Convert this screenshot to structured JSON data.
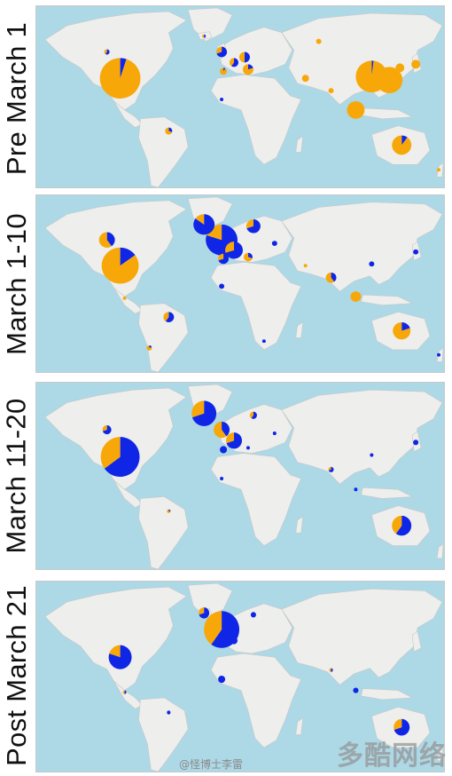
{
  "colors": {
    "ocean": "#add8e6",
    "land": "#eeeeec",
    "border": "#c8c8c8",
    "series_a": "#1026e6",
    "series_b": "#f7a808"
  },
  "panels": [
    {
      "label": "Pre March 1",
      "pies": [
        {
          "place": "usa",
          "v": [
            0.05,
            0.95
          ],
          "r": 23
        },
        {
          "place": "canada",
          "v": [
            0.6,
            0.4
          ],
          "r": 3
        },
        {
          "place": "brazil",
          "v": [
            0.3,
            0.7
          ],
          "r": 4
        },
        {
          "place": "uk",
          "v": [
            0.7,
            0.3
          ],
          "r": 6
        },
        {
          "place": "france",
          "v": [
            0.6,
            0.4
          ],
          "r": 5
        },
        {
          "place": "germany",
          "v": [
            0.5,
            0.5
          ],
          "r": 6
        },
        {
          "place": "italy",
          "v": [
            0.2,
            0.8
          ],
          "r": 6
        },
        {
          "place": "spain",
          "v": [
            0.1,
            0.9
          ],
          "r": 4
        },
        {
          "place": "iceland",
          "v": [
            0.5,
            0.5
          ],
          "r": 2
        },
        {
          "place": "russia",
          "v": [
            0,
            1
          ],
          "r": 3
        },
        {
          "place": "iran",
          "v": [
            0,
            1
          ],
          "r": 4
        },
        {
          "place": "india",
          "v": [
            0,
            1
          ],
          "r": 3
        },
        {
          "place": "china",
          "v": [
            0.02,
            0.98
          ],
          "r": 18
        },
        {
          "place": "china2",
          "v": [
            0,
            1
          ],
          "r": 15
        },
        {
          "place": "korea",
          "v": [
            0,
            1
          ],
          "r": 5
        },
        {
          "place": "japan",
          "v": [
            0,
            1
          ],
          "r": 5
        },
        {
          "place": "seasia",
          "v": [
            0,
            1
          ],
          "r": 10
        },
        {
          "place": "australia",
          "v": [
            0.1,
            0.9
          ],
          "r": 11
        },
        {
          "place": "nz",
          "v": [
            0,
            1
          ],
          "r": 2
        },
        {
          "place": "westafrica",
          "v": [
            1,
            0
          ],
          "r": 2
        }
      ]
    },
    {
      "label": "March 1-10",
      "pies": [
        {
          "place": "usa",
          "v": [
            0.15,
            0.85
          ],
          "r": 21
        },
        {
          "place": "canada",
          "v": [
            0.4,
            0.6
          ],
          "r": 9
        },
        {
          "place": "brazil",
          "v": [
            0.6,
            0.4
          ],
          "r": 6
        },
        {
          "place": "chile",
          "v": [
            0.2,
            0.8
          ],
          "r": 3
        },
        {
          "place": "iceland",
          "v": [
            0.85,
            0.15
          ],
          "r": 12
        },
        {
          "place": "uk",
          "v": [
            0.8,
            0.2
          ],
          "r": 18
        },
        {
          "place": "scandinavia",
          "v": [
            0.7,
            0.3
          ],
          "r": 8
        },
        {
          "place": "france",
          "v": [
            0.7,
            0.3
          ],
          "r": 10
        },
        {
          "place": "spain",
          "v": [
            0.7,
            0.3
          ],
          "r": 6
        },
        {
          "place": "italy",
          "v": [
            0.3,
            0.7
          ],
          "r": 5
        },
        {
          "place": "eeurope",
          "v": [
            1,
            0
          ],
          "r": 3
        },
        {
          "place": "india",
          "v": [
            0.4,
            0.6
          ],
          "r": 6
        },
        {
          "place": "iran",
          "v": [
            0,
            1
          ],
          "r": 2
        },
        {
          "place": "china",
          "v": [
            1,
            0
          ],
          "r": 3
        },
        {
          "place": "japan",
          "v": [
            1,
            0
          ],
          "r": 3
        },
        {
          "place": "seasia",
          "v": [
            0,
            1
          ],
          "r": 6
        },
        {
          "place": "australia",
          "v": [
            0.2,
            0.8
          ],
          "r": 10
        },
        {
          "place": "nz",
          "v": [
            1,
            0
          ],
          "r": 2
        },
        {
          "place": "westafrica",
          "v": [
            1,
            0
          ],
          "r": 3
        },
        {
          "place": "safrica",
          "v": [
            1,
            0
          ],
          "r": 2
        },
        {
          "place": "mexico",
          "v": [
            0,
            1
          ],
          "r": 2
        }
      ]
    },
    {
      "label": "March 11-20",
      "pies": [
        {
          "place": "usa",
          "v": [
            0.65,
            0.35
          ],
          "r": 22
        },
        {
          "place": "canada",
          "v": [
            0.7,
            0.3
          ],
          "r": 5
        },
        {
          "place": "iceland",
          "v": [
            0.7,
            0.3
          ],
          "r": 14
        },
        {
          "place": "uk",
          "v": [
            0.4,
            0.6
          ],
          "r": 9
        },
        {
          "place": "scandinavia",
          "v": [
            0.6,
            0.4
          ],
          "r": 4
        },
        {
          "place": "france",
          "v": [
            0.7,
            0.3
          ],
          "r": 9
        },
        {
          "place": "spain",
          "v": [
            1,
            0
          ],
          "r": 4
        },
        {
          "place": "italy",
          "v": [
            1,
            0
          ],
          "r": 2
        },
        {
          "place": "eeurope",
          "v": [
            1,
            0
          ],
          "r": 2
        },
        {
          "place": "india",
          "v": [
            0.7,
            0.3
          ],
          "r": 3
        },
        {
          "place": "china",
          "v": [
            1,
            0
          ],
          "r": 2
        },
        {
          "place": "japan",
          "v": [
            1,
            0
          ],
          "r": 3
        },
        {
          "place": "seasia",
          "v": [
            1,
            0
          ],
          "r": 2
        },
        {
          "place": "australia",
          "v": [
            0.6,
            0.4
          ],
          "r": 11
        },
        {
          "place": "westafrica",
          "v": [
            1,
            0
          ],
          "r": 2
        },
        {
          "place": "brazil",
          "v": [
            0.3,
            0.7
          ],
          "r": 2
        }
      ]
    },
    {
      "label": "Post March 21",
      "pies": [
        {
          "place": "usa",
          "v": [
            0.8,
            0.2
          ],
          "r": 13
        },
        {
          "place": "iceland",
          "v": [
            0.7,
            0.3
          ],
          "r": 6
        },
        {
          "place": "uk",
          "v": [
            0.6,
            0.4
          ],
          "r": 20
        },
        {
          "place": "scandinavia",
          "v": [
            1,
            0
          ],
          "r": 3
        },
        {
          "place": "france",
          "v": [
            1,
            0
          ],
          "r": 4
        },
        {
          "place": "india",
          "v": [
            0.5,
            0.5
          ],
          "r": 2
        },
        {
          "place": "seasia",
          "v": [
            1,
            0
          ],
          "r": 3
        },
        {
          "place": "australia",
          "v": [
            0.7,
            0.3
          ],
          "r": 9
        },
        {
          "place": "westafrica",
          "v": [
            1,
            0
          ],
          "r": 4
        },
        {
          "place": "mexico",
          "v": [
            0.5,
            0.5
          ],
          "r": 2
        },
        {
          "place": "brazil",
          "v": [
            1,
            0
          ],
          "r": 2
        }
      ]
    }
  ],
  "watermark": "@怪博士李雷",
  "brand": "多酷网络"
}
